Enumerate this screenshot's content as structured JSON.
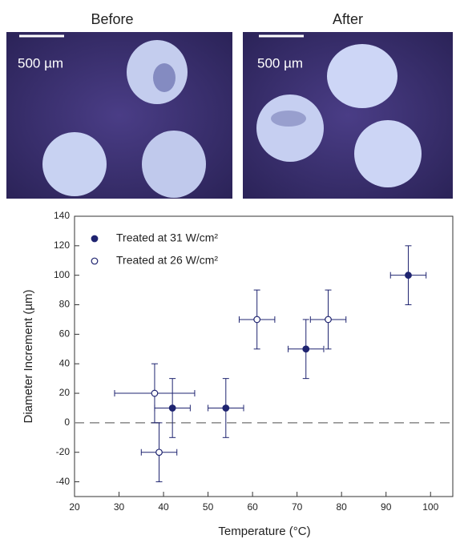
{
  "images": [
    {
      "title": "Before",
      "scale_label": "500 µm"
    },
    {
      "title": "After",
      "scale_label": "500 µm"
    }
  ],
  "chart_data": {
    "type": "scatter",
    "x_label": "Temperature (°C)",
    "y_label": "Diameter Increment (µm)",
    "xlim": [
      20,
      105
    ],
    "ylim": [
      -50,
      140
    ],
    "xticks": [
      20,
      30,
      40,
      50,
      60,
      70,
      80,
      90,
      100
    ],
    "yticks": [
      -40,
      -20,
      0,
      20,
      40,
      60,
      80,
      100,
      120,
      140
    ],
    "reference_line": 0,
    "legend": "top-left",
    "series": [
      {
        "name": "Treated at 31 W/cm²",
        "color": "#1f2470",
        "filled": true,
        "x": [
          42,
          54,
          72,
          95
        ],
        "y": [
          10,
          10,
          50,
          100
        ],
        "xerr": [
          4,
          4,
          4,
          4
        ],
        "yerr": [
          20,
          20,
          20,
          20
        ]
      },
      {
        "name": "Treated at 26 W/cm²",
        "color": "#1f2470",
        "filled": false,
        "x": [
          38,
          39,
          61,
          77
        ],
        "y": [
          20,
          -20,
          70,
          70
        ],
        "xerr": [
          9,
          4,
          4,
          4
        ],
        "yerr": [
          20,
          20,
          20,
          20
        ]
      }
    ]
  }
}
